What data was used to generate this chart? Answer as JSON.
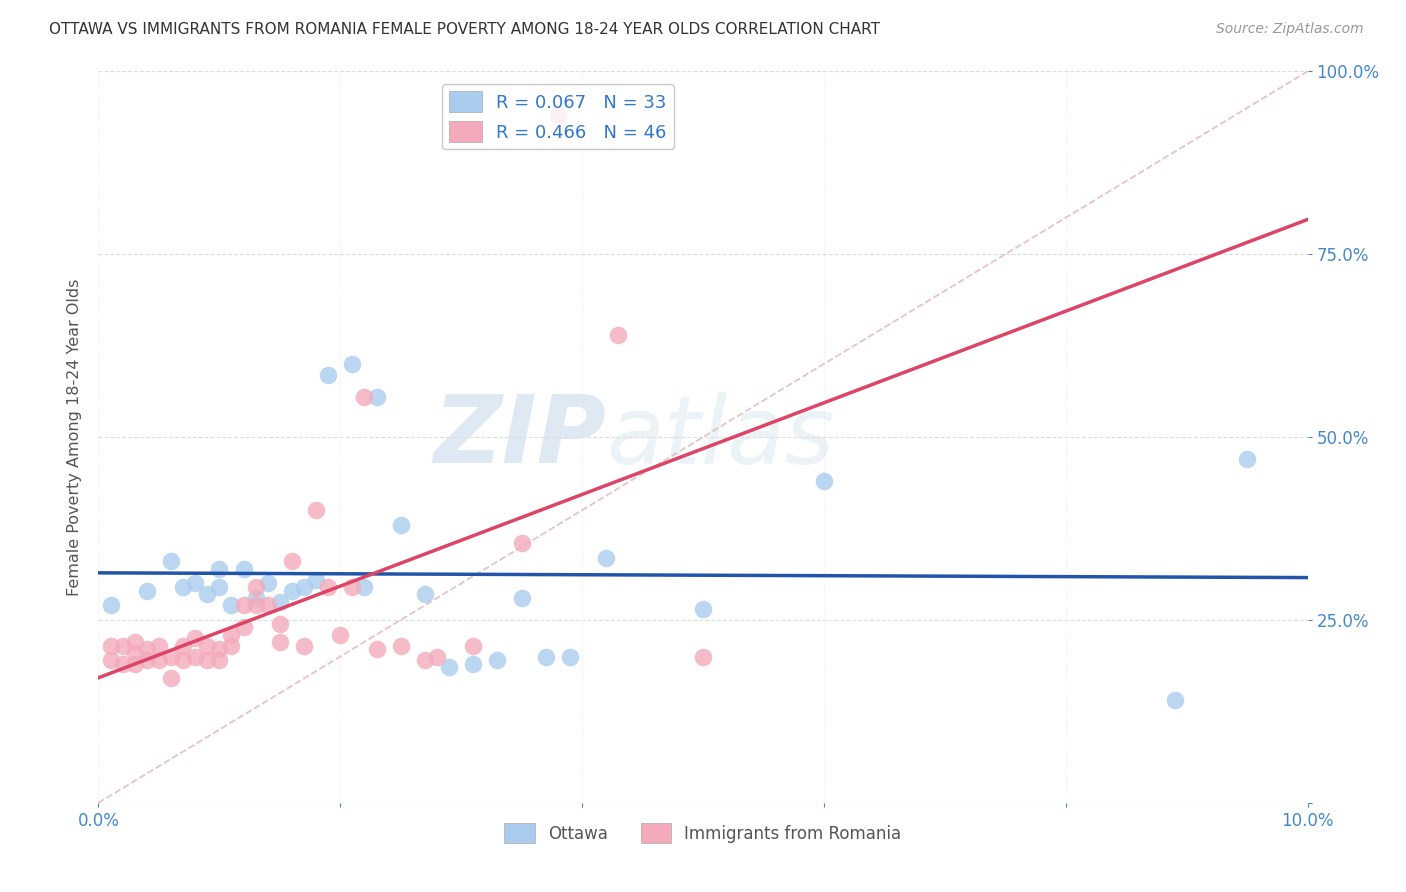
{
  "title": "OTTAWA VS IMMIGRANTS FROM ROMANIA FEMALE POVERTY AMONG 18-24 YEAR OLDS CORRELATION CHART",
  "source": "Source: ZipAtlas.com",
  "ylabel": "Female Poverty Among 18-24 Year Olds",
  "xlim": [
    0.0,
    0.1
  ],
  "ylim": [
    0.0,
    1.0
  ],
  "xtick_positions": [
    0.0,
    0.1
  ],
  "xticklabels": [
    "0.0%",
    "10.0%"
  ],
  "ytick_positions": [
    0.0,
    0.25,
    0.5,
    0.75,
    1.0
  ],
  "yticklabels": [
    "",
    "25.0%",
    "50.0%",
    "75.0%",
    "100.0%"
  ],
  "ottawa_color": "#aaccee",
  "romania_color": "#f4aabb",
  "trend_ottawa_color": "#2255aa",
  "trend_romania_color": "#dd4466",
  "legend_r_ottawa": "R = 0.067",
  "legend_n_ottawa": "N = 33",
  "legend_r_romania": "R = 0.466",
  "legend_n_romania": "N = 46",
  "ottawa_x": [
    0.001,
    0.004,
    0.006,
    0.007,
    0.008,
    0.009,
    0.01,
    0.01,
    0.011,
    0.012,
    0.013,
    0.014,
    0.015,
    0.016,
    0.017,
    0.018,
    0.019,
    0.021,
    0.022,
    0.023,
    0.025,
    0.027,
    0.029,
    0.031,
    0.033,
    0.035,
    0.037,
    0.039,
    0.042,
    0.05,
    0.06,
    0.089,
    0.095
  ],
  "ottawa_y": [
    0.27,
    0.29,
    0.33,
    0.295,
    0.3,
    0.285,
    0.295,
    0.32,
    0.27,
    0.32,
    0.28,
    0.3,
    0.275,
    0.29,
    0.295,
    0.305,
    0.585,
    0.6,
    0.295,
    0.555,
    0.38,
    0.285,
    0.185,
    0.19,
    0.195,
    0.28,
    0.2,
    0.2,
    0.335,
    0.265,
    0.44,
    0.14,
    0.47
  ],
  "romania_x": [
    0.001,
    0.001,
    0.002,
    0.002,
    0.003,
    0.003,
    0.003,
    0.004,
    0.004,
    0.005,
    0.005,
    0.006,
    0.006,
    0.007,
    0.007,
    0.008,
    0.008,
    0.009,
    0.009,
    0.01,
    0.01,
    0.011,
    0.011,
    0.012,
    0.012,
    0.013,
    0.013,
    0.014,
    0.015,
    0.015,
    0.016,
    0.017,
    0.018,
    0.019,
    0.02,
    0.021,
    0.023,
    0.025,
    0.027,
    0.031,
    0.035,
    0.038,
    0.043,
    0.05,
    0.028,
    0.022
  ],
  "romania_y": [
    0.195,
    0.215,
    0.19,
    0.215,
    0.19,
    0.205,
    0.22,
    0.195,
    0.21,
    0.195,
    0.215,
    0.17,
    0.2,
    0.195,
    0.215,
    0.2,
    0.225,
    0.195,
    0.215,
    0.21,
    0.195,
    0.23,
    0.215,
    0.27,
    0.24,
    0.27,
    0.295,
    0.27,
    0.22,
    0.245,
    0.33,
    0.215,
    0.4,
    0.295,
    0.23,
    0.295,
    0.21,
    0.215,
    0.195,
    0.215,
    0.355,
    0.94,
    0.64,
    0.2,
    0.2,
    0.555
  ],
  "watermark_zip": "ZIP",
  "watermark_atlas": "atlas",
  "background_color": "#ffffff",
  "grid_color": "#dddddd",
  "ref_line_color": "#ddaaaa"
}
